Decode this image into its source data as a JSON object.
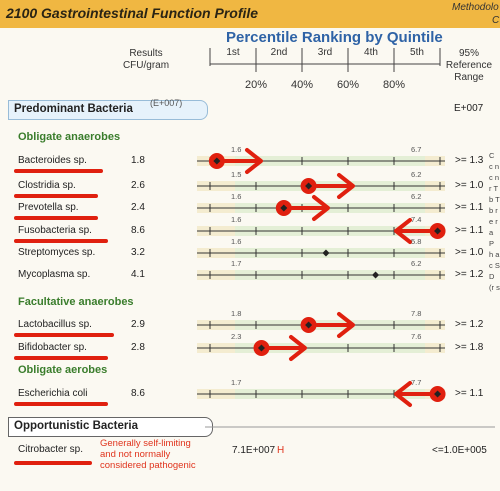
{
  "header": {
    "title": "2100 Gastrointestinal Function Profile",
    "meta_line1": "Methodolo",
    "meta_line2": "C"
  },
  "ranking": {
    "title": "Percentile Ranking by Quintile",
    "quintiles": [
      "1st",
      "2nd",
      "3rd",
      "4th",
      "5th"
    ],
    "percentiles": [
      "20%",
      "40%",
      "60%",
      "80%"
    ]
  },
  "columns": {
    "results_line1": "Results",
    "results_line2": "CFU/gram",
    "ref_line1": "95%",
    "ref_line2": "Reference",
    "ref_line3": "Range"
  },
  "sections": {
    "predominant": {
      "title": "Predominant Bacteria",
      "multiplier": "(E+007)",
      "multiplier_right": "E+007"
    },
    "opportunistic": {
      "title": "Opportunistic Bacteria"
    }
  },
  "groups": {
    "obligate_anaerobes": "Obligate anaerobes",
    "facultative_anaerobes": "Facultative anaerobes",
    "obligate_aerobes": "Obligate aerobes"
  },
  "bacteria": [
    {
      "name": "Bacteroides sp.",
      "value": "1.8",
      "ref": ">= 1.3",
      "low": "1.6",
      "high": "6.7",
      "marker_pct": 0.08,
      "flag": "right",
      "underlined": true
    },
    {
      "name": "Clostridia sp.",
      "value": "2.6",
      "ref": ">= 1.0",
      "low": "1.5",
      "high": "6.2",
      "marker_pct": 0.45,
      "flag": "right",
      "underlined": true
    },
    {
      "name": "Prevotella sp.",
      "value": "2.4",
      "ref": ">= 1.1",
      "low": "1.6",
      "high": "6.2",
      "marker_pct": 0.35,
      "flag": "right",
      "underlined": true
    },
    {
      "name": "Fusobacteria sp.",
      "value": "8.6",
      "ref": ">= 1.1",
      "low": "1.6",
      "high": "7.4",
      "marker_pct": 0.97,
      "flag": "left",
      "underlined": true
    },
    {
      "name": "Streptomyces sp.",
      "value": "3.2",
      "ref": ">= 1.0",
      "low": "1.6",
      "high": "5.8",
      "marker_pct": 0.52,
      "flag": "none",
      "underlined": false
    },
    {
      "name": "Mycoplasma sp.",
      "value": "4.1",
      "ref": ">= 1.2",
      "low": "1.7",
      "high": "6.2",
      "marker_pct": 0.72,
      "flag": "none",
      "underlined": false
    },
    {
      "name": "Lactobacillus sp.",
      "value": "2.9",
      "ref": ">= 1.2",
      "low": "1.8",
      "high": "7.8",
      "marker_pct": 0.45,
      "flag": "right",
      "underlined": true
    },
    {
      "name": "Bifidobacter sp.",
      "value": "2.8",
      "ref": ">= 1.8",
      "low": "2.3",
      "high": "7.6",
      "marker_pct": 0.26,
      "flag": "right",
      "underlined": true
    },
    {
      "name": "Escherichia coli",
      "value": "8.6",
      "ref": ">= 1.1",
      "low": "1.7",
      "high": "7.7",
      "marker_pct": 0.97,
      "flag": "left",
      "underlined": true
    }
  ],
  "opportunistic_item": {
    "name": "Citrobacter sp.",
    "value": "7.1E+007",
    "flag_letter": "H",
    "ref": "<=1.0E+005",
    "note_line1": "Generally self-limiting",
    "note_line2": "and not normally",
    "note_line3": "considered pathogenic"
  },
  "side_text": "C c n c n r T b T b r e r a P h a c S D (r s",
  "colors": {
    "title_band": "#f0b742",
    "accent_blue": "#2f63a6",
    "group_green": "#3a7d2c",
    "annotation_red": "#e0200f"
  }
}
